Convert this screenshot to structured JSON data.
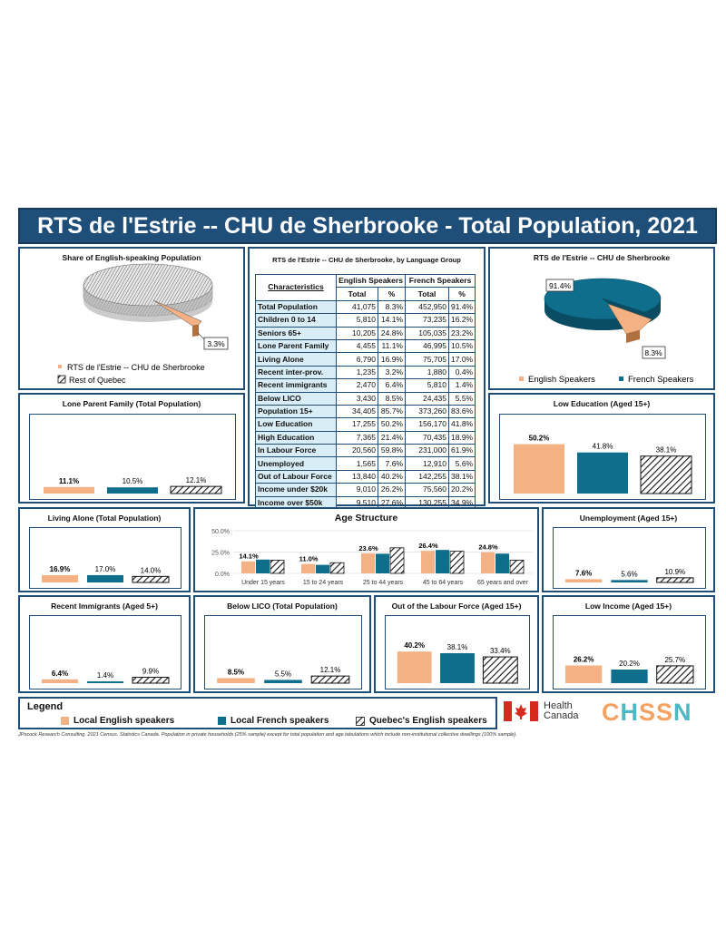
{
  "header": {
    "title": "RTS de l'Estrie -- CHU de Sherbrooke - Total Population, 2021"
  },
  "colors": {
    "english": "#f4b183",
    "french": "#0e6e8c",
    "quebec_hatch": "#111111",
    "frame": "#1f4e79"
  },
  "pie_left": {
    "title": "Share of English-speaking Population",
    "slice_label": "3.3%",
    "legend": [
      "RTS de l'Estrie -- CHU de Sherbrooke",
      "Rest of Quebec"
    ]
  },
  "pie_right": {
    "title": "RTS de l'Estrie -- CHU de Sherbrooke",
    "label_french": "91.4%",
    "label_english": "8.3%",
    "legend": [
      "English Speakers",
      "French Speakers"
    ]
  },
  "table": {
    "title": "RTS de l'Estrie -- CHU de Sherbrooke, by Language Group",
    "col_characteristics": "Characteristics",
    "col_english": "English Speakers",
    "col_french": "French Speakers",
    "col_total": "Total",
    "col_pct": "%",
    "rows": [
      [
        "Total Population",
        "41,075",
        "8.3%",
        "452,950",
        "91.4%"
      ],
      [
        "Children 0 to 14",
        "5,810",
        "14.1%",
        "73,235",
        "16.2%"
      ],
      [
        "Seniors 65+",
        "10,205",
        "24.8%",
        "105,035",
        "23.2%"
      ],
      [
        "Lone Parent Family",
        "4,455",
        "11.1%",
        "46,995",
        "10.5%"
      ],
      [
        "Living Alone",
        "6,790",
        "16.9%",
        "75,705",
        "17.0%"
      ],
      [
        "Recent inter-prov.",
        "1,235",
        "3.2%",
        "1,880",
        "0.4%"
      ],
      [
        "Recent immigrants",
        "2,470",
        "6.4%",
        "5,810",
        "1.4%"
      ],
      [
        "Below LICO",
        "3,430",
        "8.5%",
        "24,435",
        "5.5%"
      ],
      [
        "Population 15+",
        "34,405",
        "85.7%",
        "373,260",
        "83.6%"
      ],
      [
        "Low Education",
        "17,255",
        "50.2%",
        "156,170",
        "41.8%"
      ],
      [
        "High Education",
        "7,365",
        "21.4%",
        "70,435",
        "18.9%"
      ],
      [
        "In Labour Force",
        "20,560",
        "59.8%",
        "231,000",
        "61.9%"
      ],
      [
        "Unemployed",
        "1,565",
        "7.6%",
        "12,910",
        "5.6%"
      ],
      [
        "Out of Labour Force",
        "13,840",
        "40.2%",
        "142,255",
        "38.1%"
      ],
      [
        "Income under $20k",
        "9,010",
        "26.2%",
        "75,560",
        "20.2%"
      ],
      [
        "Income over $50k",
        "9,510",
        "27.6%",
        "130,255",
        "34.9%"
      ]
    ]
  },
  "legend": {
    "title": "Legend",
    "items": [
      "Local English speakers",
      "Local French speakers",
      "Quebec's English speakers"
    ]
  },
  "footnote": "JPocock Research Consulting. 2021 Census. Statistics Canada. Population in private households (25% sample) except for total population and age tabulations which include non-institutional collective dwellings (100% sample).",
  "logos": {
    "health_canada_line1": "Health",
    "health_canada_line2": "Canada",
    "chssn": "CHSSN"
  },
  "chart_data": [
    {
      "id": "share",
      "type": "pie",
      "title": "Share of English-speaking Population",
      "categories": [
        "RTS de l'Estrie -- CHU de Sherbrooke",
        "Rest of Quebec"
      ],
      "values": [
        3.3,
        96.7
      ],
      "labels": [
        "3.3%",
        ""
      ]
    },
    {
      "id": "langgroup",
      "type": "pie",
      "title": "RTS de l'Estrie -- CHU de Sherbrooke",
      "categories": [
        "English Speakers",
        "French Speakers"
      ],
      "values": [
        8.3,
        91.4
      ],
      "labels": [
        "8.3%",
        "91.4%"
      ]
    },
    {
      "id": "lone_parent",
      "type": "bar",
      "title": "Lone Parent Family (Total Population)",
      "values": [
        11.1,
        10.5,
        12.1
      ],
      "labels": [
        "11.1%",
        "10.5%",
        "12.1%"
      ],
      "ymax": 100
    },
    {
      "id": "low_edu",
      "type": "bar",
      "title": "Low Education (Aged 15+)",
      "values": [
        50.2,
        41.8,
        38.1
      ],
      "labels": [
        "50.2%",
        "41.8%",
        "38.1%"
      ],
      "ymax": 60
    },
    {
      "id": "living_alone",
      "type": "bar",
      "title": "Living Alone (Total Population)",
      "values": [
        16.9,
        17.0,
        14.0
      ],
      "labels": [
        "16.9%",
        "17.0%",
        "14.0%"
      ],
      "ymax": 80
    },
    {
      "id": "age",
      "type": "bar",
      "title": "Age Structure",
      "categories": [
        "Under 15 years",
        "15 to 24 years",
        "25 to 44 years",
        "45 to 64 years",
        "65 years and over"
      ],
      "yticks": [
        "0.0%",
        "25.0%",
        "50.0%"
      ],
      "ylim": [
        0,
        50
      ],
      "series": [
        {
          "name": "Local English speakers",
          "values": [
            14.1,
            11.0,
            23.6,
            26.4,
            24.8
          ],
          "labels": [
            "14.1%",
            "11.0%",
            "23.6%",
            "26.4%",
            "24.8%"
          ]
        },
        {
          "name": "Local French speakers",
          "values": [
            16.2,
            10.0,
            23.0,
            27.5,
            23.2
          ]
        },
        {
          "name": "Quebec's English speakers",
          "values": [
            15.5,
            12.5,
            30.0,
            26.0,
            15.5
          ]
        }
      ]
    },
    {
      "id": "unemp",
      "type": "bar",
      "title": "Unemployment (Aged 15+)",
      "values": [
        7.6,
        5.6,
        10.9
      ],
      "labels": [
        "7.6%",
        "5.6%",
        "10.9%"
      ],
      "ymax": 80
    },
    {
      "id": "immig",
      "type": "bar",
      "title": "Recent Immigrants (Aged 5+)",
      "values": [
        6.4,
        1.4,
        9.9
      ],
      "labels": [
        "6.4%",
        "1.4%",
        "9.9%"
      ],
      "ymax": 80
    },
    {
      "id": "lico",
      "type": "bar",
      "title": "Below LICO (Total Population)",
      "values": [
        8.5,
        5.5,
        12.1
      ],
      "labels": [
        "8.5%",
        "5.5%",
        "12.1%"
      ],
      "ymax": 80
    },
    {
      "id": "outlabour",
      "type": "bar",
      "title": "Out of the Labour Force (Aged 15+)",
      "values": [
        40.2,
        38.1,
        33.4
      ],
      "labels": [
        "40.2%",
        "38.1%",
        "33.4%"
      ],
      "ymax": 60
    },
    {
      "id": "income",
      "type": "bar",
      "title": "Low Income (Aged 15+)",
      "values": [
        26.2,
        20.2,
        25.7
      ],
      "labels": [
        "26.2%",
        "20.2%",
        "25.7%"
      ],
      "ymax": 70
    }
  ]
}
